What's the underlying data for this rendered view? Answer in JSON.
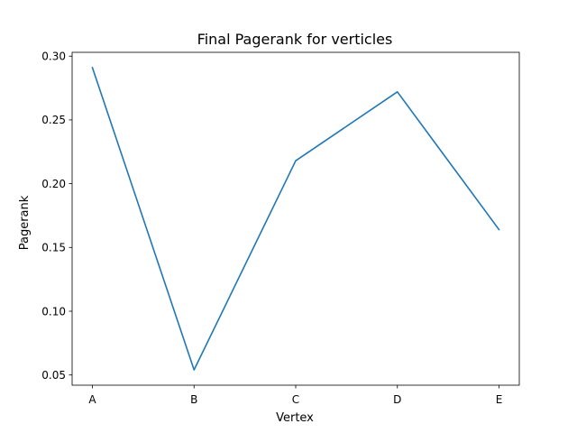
{
  "chart_data": {
    "type": "line",
    "title": "Final Pagerank for verticles",
    "xlabel": "Vertex",
    "ylabel": "Pagerank",
    "categories": [
      "A",
      "B",
      "C",
      "D",
      "E"
    ],
    "series": [
      {
        "values": [
          0.291,
          0.054,
          0.218,
          0.272,
          0.164
        ]
      }
    ],
    "yticks": [
      0.05,
      0.1,
      0.15,
      0.2,
      0.25,
      0.3
    ],
    "ylim": [
      0.042,
      0.303
    ],
    "grid": false,
    "line_color": "#1f77b4"
  }
}
